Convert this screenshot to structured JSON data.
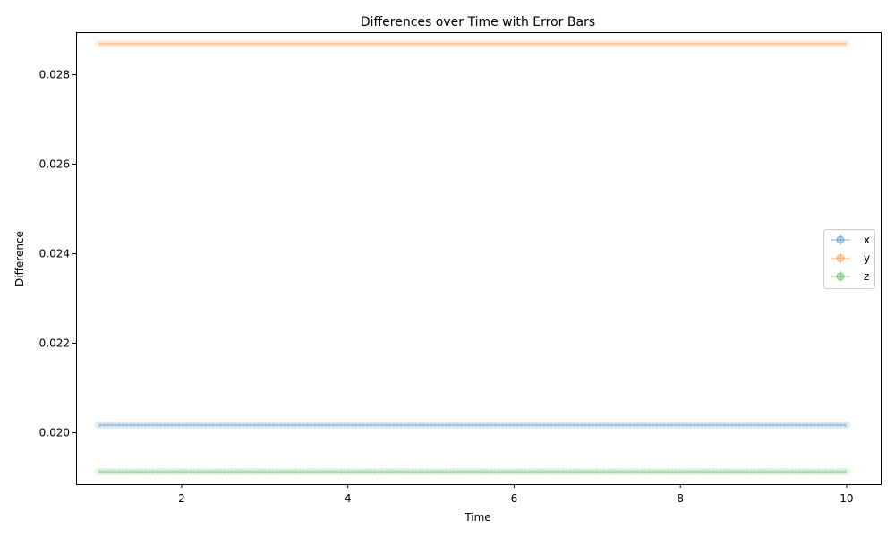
{
  "chart_data": {
    "type": "scatter",
    "title": "Differences over Time with Error Bars",
    "xlabel": "Time",
    "ylabel": "Difference",
    "xlim": [
      0.73,
      10.41
    ],
    "ylim": [
      0.01885,
      0.02895
    ],
    "xticks": [
      2,
      4,
      6,
      8,
      10
    ],
    "yticks": [
      0.02,
      0.022,
      0.024,
      0.026,
      0.028
    ],
    "ytick_labels": [
      "0.020",
      "0.022",
      "0.024",
      "0.026",
      "0.028"
    ],
    "x_range": [
      1.0,
      10.0
    ],
    "n_points": 200,
    "legend_position": "center-right",
    "series": [
      {
        "name": "x",
        "color": "#1f77b4",
        "value": 0.02017
      },
      {
        "name": "y",
        "color": "#ff7f0e",
        "value": 0.02869
      },
      {
        "name": "z",
        "color": "#2ca02c",
        "value": 0.01913
      }
    ]
  }
}
